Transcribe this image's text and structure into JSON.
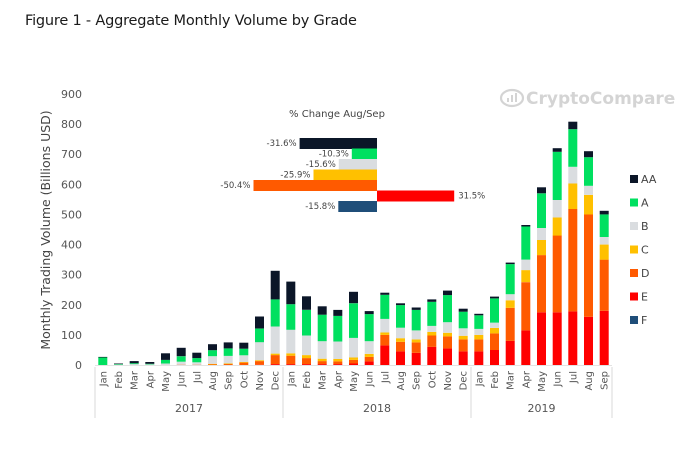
{
  "chart_data": {
    "type": "bar",
    "stacked": true,
    "title": "Figure 1 - Aggregate Monthly Volume by Grade",
    "ylabel": "Monthly Trading Volume (Billions USD)",
    "xlabel": "",
    "ylim": [
      0,
      900
    ],
    "yticks": [
      0,
      100,
      200,
      300,
      400,
      500,
      600,
      700,
      800,
      900
    ],
    "watermark": "CryptoCompare",
    "legend_position": "right",
    "years": [
      {
        "label": "2017",
        "months": 12
      },
      {
        "label": "2018",
        "months": 12
      },
      {
        "label": "2019",
        "months": 9
      }
    ],
    "categories": [
      "Jan",
      "Feb",
      "Mar",
      "Apr",
      "May",
      "Jun",
      "Jul",
      "Aug",
      "Sep",
      "Oct",
      "Nov",
      "Dec",
      "Jan",
      "Feb",
      "Mar",
      "Apr",
      "May",
      "Jun",
      "Jul",
      "Aug",
      "Sep",
      "Oct",
      "Nov",
      "Dec",
      "Jan",
      "Feb",
      "Mar",
      "Apr",
      "May",
      "Jun",
      "Jul",
      "Aug",
      "Sep"
    ],
    "series": [
      {
        "name": "F",
        "color": "#1f4e79",
        "values": [
          0,
          0,
          0,
          0,
          0,
          0,
          0,
          0,
          0,
          0,
          0,
          0,
          0,
          0,
          0,
          0,
          0,
          0,
          0,
          0,
          0,
          0,
          0,
          0,
          0,
          0,
          0,
          0,
          0,
          0,
          0,
          0,
          0
        ]
      },
      {
        "name": "E",
        "color": "#ff0000",
        "values": [
          0,
          0,
          0,
          0,
          0,
          0,
          0,
          0,
          0,
          0,
          1,
          3,
          3,
          3,
          3,
          3,
          5,
          12,
          65,
          45,
          40,
          60,
          55,
          45,
          45,
          50,
          80,
          115,
          175,
          175,
          178,
          160,
          180
        ]
      },
      {
        "name": "D",
        "color": "#ff5a00",
        "values": [
          0,
          0,
          0,
          0,
          0,
          1,
          1,
          3,
          4,
          8,
          12,
          30,
          28,
          20,
          10,
          9,
          12,
          15,
          35,
          32,
          35,
          38,
          40,
          40,
          40,
          55,
          110,
          160,
          190,
          255,
          340,
          340,
          170
        ]
      },
      {
        "name": "C",
        "color": "#ffc000",
        "values": [
          0,
          0,
          0,
          0,
          0,
          0,
          0,
          1,
          1,
          2,
          3,
          5,
          8,
          10,
          8,
          8,
          8,
          10,
          8,
          12,
          10,
          12,
          12,
          12,
          15,
          18,
          25,
          40,
          50,
          60,
          85,
          65,
          50
        ]
      },
      {
        "name": "B",
        "color": "#dadde0",
        "values": [
          0,
          2,
          3,
          2,
          5,
          10,
          8,
          25,
          25,
          22,
          60,
          90,
          78,
          65,
          58,
          58,
          65,
          42,
          45,
          35,
          30,
          20,
          35,
          25,
          20,
          18,
          20,
          35,
          40,
          58,
          55,
          30,
          25
        ]
      },
      {
        "name": "A",
        "color": "#00e060",
        "values": [
          25,
          1,
          3,
          2,
          12,
          18,
          14,
          20,
          25,
          22,
          45,
          90,
          85,
          85,
          88,
          85,
          115,
          90,
          80,
          75,
          68,
          80,
          90,
          55,
          45,
          80,
          100,
          110,
          115,
          160,
          125,
          95,
          75
        ]
      },
      {
        "name": "AA",
        "color": "#0b1628",
        "values": [
          2,
          2,
          7,
          6,
          22,
          28,
          18,
          20,
          20,
          20,
          40,
          95,
          75,
          45,
          28,
          20,
          38,
          10,
          7,
          6,
          8,
          8,
          15,
          10,
          5,
          6,
          5,
          5,
          20,
          12,
          25,
          20,
          12
        ]
      }
    ],
    "inset": {
      "title": "% Change Aug/Sep",
      "type": "bar-horizontal",
      "items": [
        {
          "grade": "AA",
          "value": -31.6,
          "label": "-31.6%",
          "color": "#0b1628"
        },
        {
          "grade": "A",
          "value": -10.3,
          "label": "-10.3%",
          "color": "#00e060"
        },
        {
          "grade": "B",
          "value": -15.6,
          "label": "-15.6%",
          "color": "#dadde0"
        },
        {
          "grade": "C",
          "value": -25.9,
          "label": "-25.9%",
          "color": "#ffc000"
        },
        {
          "grade": "D",
          "value": -50.4,
          "label": "-50.4%",
          "color": "#ff5a00"
        },
        {
          "grade": "E",
          "value": 31.5,
          "label": "31.5%",
          "color": "#ff0000"
        },
        {
          "grade": "F",
          "value": -15.8,
          "label": "-15.8%",
          "color": "#1f4e79"
        }
      ]
    },
    "legend": [
      {
        "name": "AA",
        "color": "#0b1628"
      },
      {
        "name": "A",
        "color": "#00e060"
      },
      {
        "name": "B",
        "color": "#dadde0"
      },
      {
        "name": "C",
        "color": "#ffc000"
      },
      {
        "name": "D",
        "color": "#ff5a00"
      },
      {
        "name": "E",
        "color": "#ff0000"
      },
      {
        "name": "F",
        "color": "#1f4e79"
      }
    ]
  }
}
